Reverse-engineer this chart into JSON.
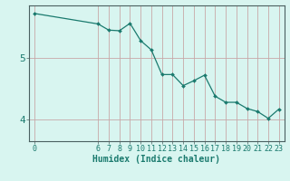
{
  "x": [
    0,
    6,
    7,
    8,
    9,
    10,
    11,
    12,
    13,
    14,
    15,
    16,
    17,
    18,
    19,
    20,
    21,
    22,
    23
  ],
  "y": [
    5.72,
    5.55,
    5.45,
    5.44,
    5.56,
    5.28,
    5.13,
    4.73,
    4.73,
    4.55,
    4.63,
    4.72,
    4.38,
    4.28,
    4.28,
    4.18,
    4.13,
    4.02,
    4.17
  ],
  "xlabel": "Humidex (Indice chaleur)",
  "yticks": [
    4,
    5
  ],
  "xticks": [
    0,
    6,
    7,
    8,
    9,
    10,
    11,
    12,
    13,
    14,
    15,
    16,
    17,
    18,
    19,
    20,
    21,
    22,
    23
  ],
  "ylim": [
    3.65,
    5.85
  ],
  "xlim": [
    -0.5,
    23.5
  ],
  "bg_color": "#d8f5f0",
  "line_color": "#1a7a6e",
  "grid_color": "#c8a8a8",
  "axis_color": "#4a6060",
  "xlabel_fontsize": 7,
  "tick_fontsize": 6,
  "ytick_fontsize": 8
}
